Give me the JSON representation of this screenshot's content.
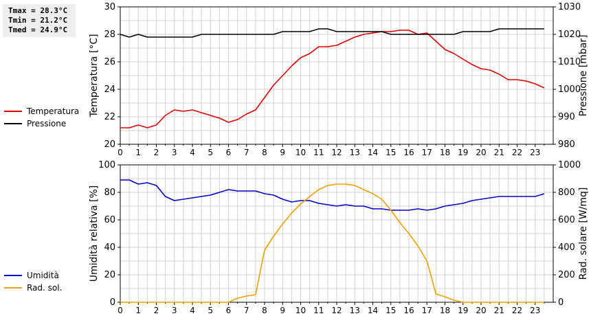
{
  "stats": {
    "tmax": "Tmax = 28.3°C",
    "tmin": "Tmin = 21.2°C",
    "tmed": "Tmed = 24.9°C"
  },
  "legend_top": [
    {
      "label": "Temperatura",
      "color": "#dd0000"
    },
    {
      "label": "Pressione",
      "color": "#000000"
    }
  ],
  "legend_bottom": [
    {
      "label": "Umidità",
      "color": "#0000cc"
    },
    {
      "label": "Rad. sol.",
      "color": "#f0a000"
    }
  ],
  "chart_data": [
    {
      "type": "line",
      "xlim": [
        0,
        24
      ],
      "xticks": [
        0,
        1,
        2,
        3,
        4,
        5,
        6,
        7,
        8,
        9,
        10,
        11,
        12,
        13,
        14,
        15,
        16,
        17,
        18,
        19,
        20,
        21,
        22,
        23
      ],
      "ylabel": "Temperatura [°C]",
      "ylim": [
        20,
        30
      ],
      "yticks": [
        20,
        22,
        24,
        26,
        28,
        30
      ],
      "y2label": "Pressione [mbar]",
      "y2lim": [
        980,
        1030
      ],
      "y2ticks": [
        980,
        990,
        1000,
        1010,
        1020,
        1030
      ],
      "grid": true,
      "series": [
        {
          "name": "Temperatura",
          "axis": "left",
          "color": "#dd0000",
          "x": [
            0,
            0.5,
            1,
            1.5,
            2,
            2.5,
            3,
            3.5,
            4,
            4.5,
            5,
            5.5,
            6,
            6.5,
            7,
            7.5,
            8,
            8.5,
            9,
            9.5,
            10,
            10.5,
            11,
            11.5,
            12,
            12.5,
            13,
            13.5,
            14,
            14.5,
            15,
            15.5,
            16,
            16.5,
            17,
            17.5,
            18,
            18.5,
            19,
            19.5,
            20,
            20.5,
            21,
            21.5,
            22,
            22.5,
            23,
            23.5
          ],
          "y": [
            21.2,
            21.2,
            21.4,
            21.2,
            21.4,
            22.1,
            22.5,
            22.4,
            22.5,
            22.3,
            22.1,
            21.9,
            21.6,
            21.8,
            22.2,
            22.5,
            23.4,
            24.3,
            25.0,
            25.7,
            26.3,
            26.6,
            27.1,
            27.1,
            27.2,
            27.5,
            27.8,
            28.0,
            28.1,
            28.2,
            28.2,
            28.3,
            28.3,
            28.0,
            28.1,
            27.5,
            26.9,
            26.6,
            26.2,
            25.8,
            25.5,
            25.4,
            25.1,
            24.7,
            24.7,
            24.6,
            24.4,
            24.1
          ]
        },
        {
          "name": "Pressione",
          "axis": "right",
          "color": "#000000",
          "x": [
            0,
            0.5,
            1,
            1.5,
            2,
            2.5,
            3,
            3.5,
            4,
            4.5,
            5,
            5.5,
            6,
            6.5,
            7,
            7.5,
            8,
            8.5,
            9,
            9.5,
            10,
            10.5,
            11,
            11.5,
            12,
            12.5,
            13,
            13.5,
            14,
            14.5,
            15,
            15.5,
            16,
            16.5,
            17,
            17.5,
            18,
            18.5,
            19,
            19.5,
            20,
            20.5,
            21,
            21.5,
            22,
            22.5,
            23,
            23.5
          ],
          "y": [
            1020,
            1019,
            1020,
            1019,
            1019,
            1019,
            1019,
            1019,
            1019,
            1020,
            1020,
            1020,
            1020,
            1020,
            1020,
            1020,
            1020,
            1020,
            1021,
            1021,
            1021,
            1021,
            1022,
            1022,
            1021,
            1021,
            1021,
            1021,
            1021,
            1021,
            1020,
            1020,
            1020,
            1020,
            1020,
            1020,
            1020,
            1020,
            1021,
            1021,
            1021,
            1021,
            1022,
            1022,
            1022,
            1022,
            1022,
            1022
          ]
        }
      ]
    },
    {
      "type": "line",
      "xlim": [
        0,
        24
      ],
      "xticks": [
        0,
        1,
        2,
        3,
        4,
        5,
        6,
        7,
        8,
        9,
        10,
        11,
        12,
        13,
        14,
        15,
        16,
        17,
        18,
        19,
        20,
        21,
        22,
        23
      ],
      "ylabel": "Umidità relativa [%]",
      "ylim": [
        0,
        100
      ],
      "yticks": [
        0,
        20,
        40,
        60,
        80,
        100
      ],
      "y2label": "Rad. solare [W/mq]",
      "y2lim": [
        0,
        1000
      ],
      "y2ticks": [
        0,
        200,
        400,
        600,
        800,
        1000
      ],
      "grid": true,
      "series": [
        {
          "name": "Umidità",
          "axis": "left",
          "color": "#0000cc",
          "x": [
            0,
            0.5,
            1,
            1.5,
            2,
            2.5,
            3,
            3.5,
            4,
            4.5,
            5,
            5.5,
            6,
            6.5,
            7,
            7.5,
            8,
            8.5,
            9,
            9.5,
            10,
            10.5,
            11,
            11.5,
            12,
            12.5,
            13,
            13.5,
            14,
            14.5,
            15,
            15.5,
            16,
            16.5,
            17,
            17.5,
            18,
            18.5,
            19,
            19.5,
            20,
            20.5,
            21,
            21.5,
            22,
            22.5,
            23,
            23.5
          ],
          "y": [
            89,
            89,
            86,
            87,
            85,
            77,
            74,
            75,
            76,
            77,
            78,
            80,
            82,
            81,
            81,
            81,
            79,
            78,
            75,
            73,
            74,
            74,
            72,
            71,
            70,
            71,
            70,
            70,
            68,
            68,
            67,
            67,
            67,
            68,
            67,
            68,
            70,
            71,
            72,
            74,
            75,
            76,
            77,
            77,
            77,
            77,
            77,
            79
          ]
        },
        {
          "name": "Rad. sol.",
          "axis": "right",
          "color": "#f0a000",
          "x": [
            0,
            0.5,
            1,
            1.5,
            2,
            2.5,
            3,
            3.5,
            4,
            4.5,
            5,
            5.5,
            6,
            6.5,
            7,
            7.5,
            8,
            8.5,
            9,
            9.5,
            10,
            10.5,
            11,
            11.5,
            12,
            12.5,
            13,
            13.5,
            14,
            14.5,
            15,
            15.5,
            16,
            16.5,
            17,
            17.5,
            18,
            18.5,
            19,
            19.5,
            20,
            20.5,
            21,
            21.5,
            22,
            22.5,
            23,
            23.5
          ],
          "y": [
            0,
            0,
            0,
            0,
            0,
            0,
            0,
            0,
            0,
            0,
            0,
            0,
            0,
            30,
            45,
            55,
            380,
            480,
            570,
            650,
            715,
            770,
            820,
            850,
            860,
            860,
            850,
            820,
            790,
            750,
            670,
            580,
            500,
            410,
            300,
            60,
            40,
            15,
            0,
            0,
            0,
            0,
            0,
            0,
            0,
            0,
            0,
            0
          ]
        }
      ]
    }
  ]
}
